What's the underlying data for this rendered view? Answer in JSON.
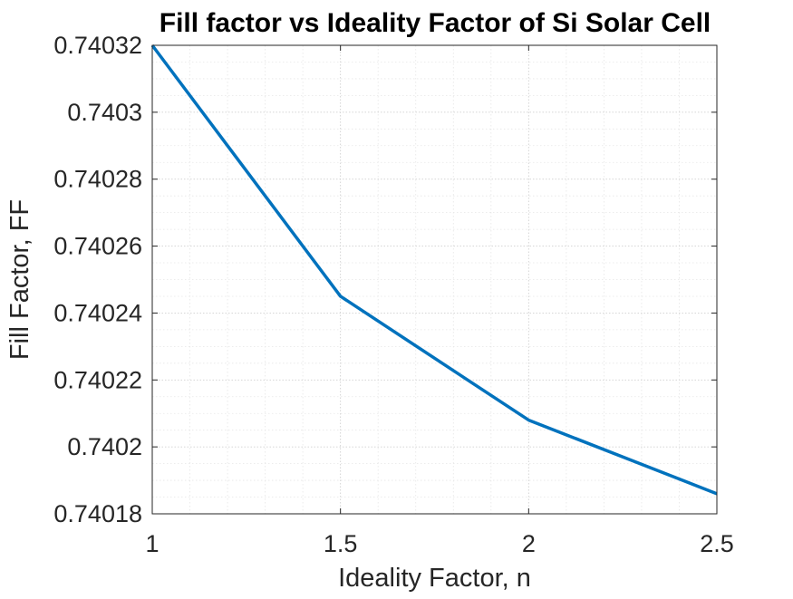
{
  "chart_data": {
    "type": "line",
    "title": "Fill factor vs Ideality Factor of Si Solar Cell",
    "xlabel": "Ideality Factor, n",
    "ylabel": "Fill Factor, FF",
    "xlim": [
      1,
      2.5
    ],
    "ylim": [
      0.74018,
      0.74032
    ],
    "xticks": [
      1,
      1.5,
      2,
      2.5
    ],
    "xtick_labels": [
      "1",
      "1.5",
      "2",
      "2.5"
    ],
    "yticks": [
      0.74018,
      0.7402,
      0.74022,
      0.74024,
      0.74026,
      0.74028,
      0.7403,
      0.74032
    ],
    "ytick_labels": [
      "0.74018",
      "0.7402",
      "0.74022",
      "0.74024",
      "0.74026",
      "0.74028",
      "0.7403",
      "0.74032"
    ],
    "grid": true,
    "minor_grid": true,
    "series": [
      {
        "x": [
          1,
          1.5,
          2,
          2.5
        ],
        "y": [
          0.74032,
          0.740245,
          0.740208,
          0.740186
        ],
        "color": "#0072BD"
      }
    ]
  }
}
